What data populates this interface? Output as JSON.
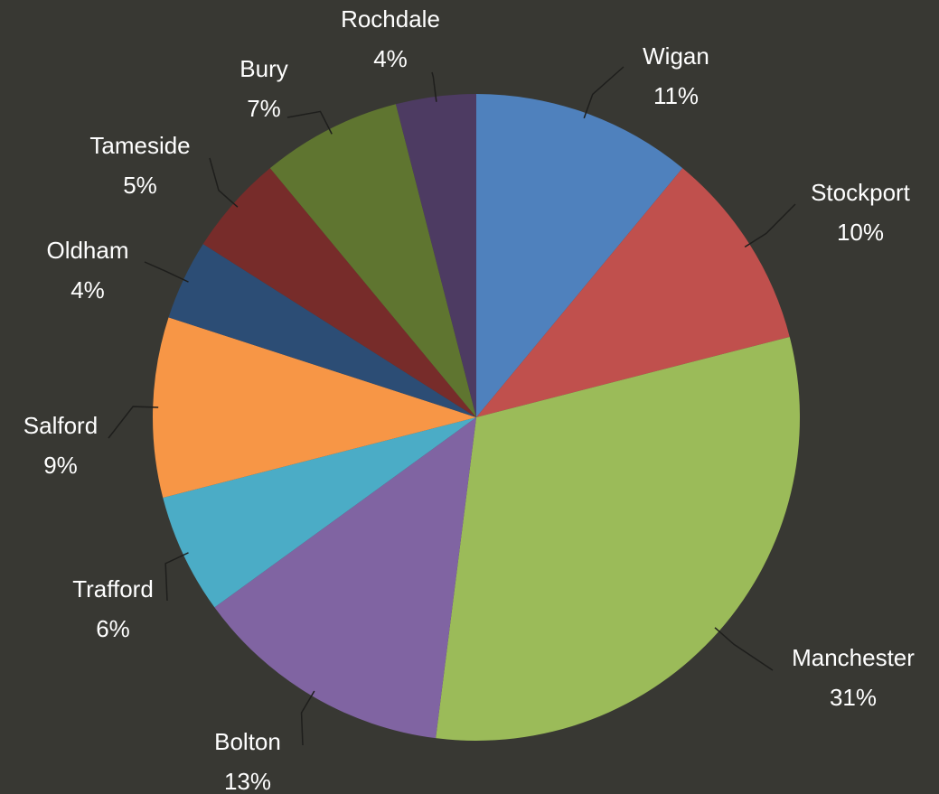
{
  "chart_data": {
    "type": "pie",
    "categories": [
      "Wigan",
      "Stockport",
      "Manchester",
      "Bolton",
      "Trafford",
      "Salford",
      "Oldham",
      "Tameside",
      "Bury",
      "Rochdale"
    ],
    "values": [
      11,
      10,
      31,
      13,
      6,
      9,
      4,
      5,
      7,
      4
    ],
    "value_labels": [
      "11%",
      "10%",
      "31%",
      "13%",
      "6%",
      "9%",
      "4%",
      "5%",
      "7%",
      "4%"
    ],
    "colors": [
      "#4f81bd",
      "#c0504d",
      "#9bbb59",
      "#8064a2",
      "#4bacc6",
      "#f79646",
      "#2c4d75",
      "#772c2a",
      "#5f7530",
      "#4d3b62"
    ]
  }
}
